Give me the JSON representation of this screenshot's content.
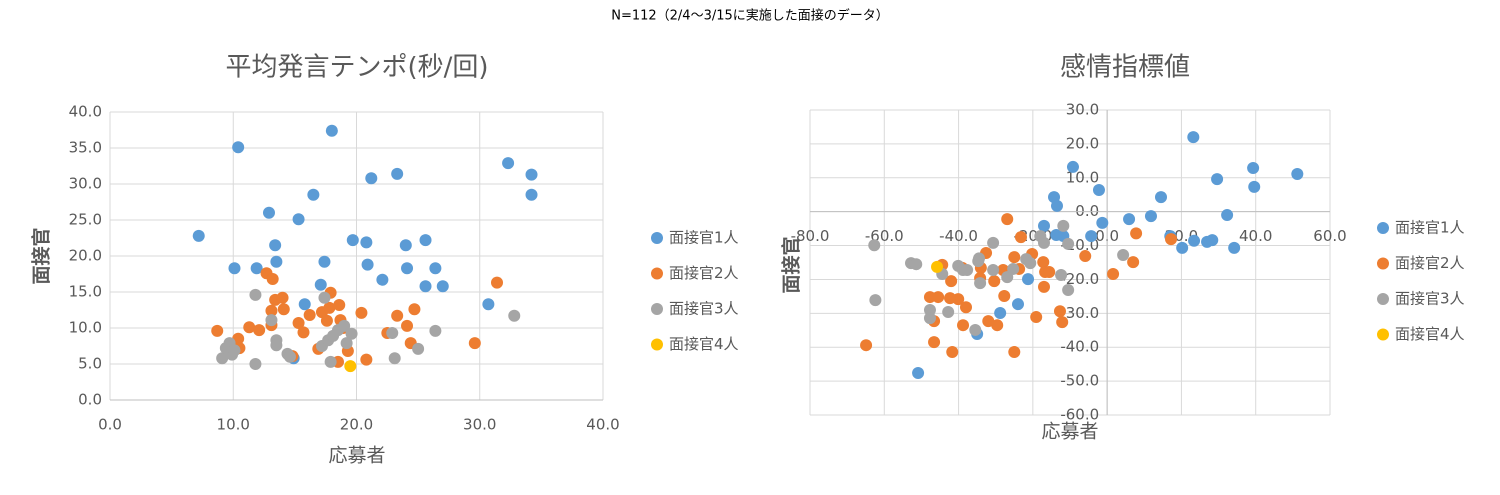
{
  "title": "N=112（2/4～3/15に実施した面接のデータ）",
  "chart_data": [
    {
      "type": "scatter",
      "title": "平均発言テンポ(秒/回)",
      "x_label": "応募者",
      "y_label": "面接官",
      "grid": true,
      "legend": "right",
      "axis_position": "edge",
      "xlim": [
        0,
        40
      ],
      "ylim": [
        0,
        40
      ],
      "xticks": [
        {
          "value": 0,
          "label": "0.0"
        },
        {
          "value": 10,
          "label": "10.0"
        },
        {
          "value": 20,
          "label": "20.0"
        },
        {
          "value": 30,
          "label": "30.0"
        },
        {
          "value": 40,
          "label": "40.0"
        }
      ],
      "yticks": [
        {
          "value": 0,
          "label": "0.0"
        },
        {
          "value": 5,
          "label": "5.0"
        },
        {
          "value": 10,
          "label": "10.0"
        },
        {
          "value": 15,
          "label": "15.0"
        },
        {
          "value": 20,
          "label": "20.0"
        },
        {
          "value": 25,
          "label": "25.0"
        },
        {
          "value": 30,
          "label": "30.0"
        },
        {
          "value": 35,
          "label": "35.0"
        },
        {
          "value": 40,
          "label": "40.0"
        }
      ],
      "series": [
        {
          "name": "面接官1人",
          "color": "#5b9bd5",
          "x": [
            7.2,
            10.4,
            10.1,
            11.9,
            12.9,
            13.4,
            13.5,
            15.3,
            16.5,
            15.8,
            18.0,
            17.4,
            17.1,
            19.7,
            20.8,
            21.2,
            20.9,
            22.1,
            23.3,
            24.0,
            24.1,
            25.6,
            25.6,
            26.4,
            27.0,
            30.7,
            32.3,
            34.2,
            34.2,
            14.9
          ],
          "values": [
            22.8,
            35.1,
            18.3,
            18.3,
            26.0,
            21.5,
            19.2,
            25.1,
            28.5,
            13.3,
            37.4,
            19.2,
            16.0,
            22.2,
            21.9,
            30.8,
            18.8,
            16.7,
            31.4,
            21.5,
            18.3,
            22.2,
            15.8,
            18.3,
            15.8,
            13.3,
            32.9,
            31.3,
            28.5,
            5.8
          ]
        },
        {
          "name": "面接官2人",
          "color": "#ed7d31",
          "x": [
            8.7,
            10.4,
            10.5,
            11.3,
            12.1,
            12.7,
            13.2,
            13.4,
            13.1,
            13.1,
            14.0,
            14.1,
            14.8,
            15.3,
            15.7,
            16.2,
            16.9,
            17.2,
            17.6,
            17.8,
            17.9,
            18.6,
            18.7,
            18.9,
            19.3,
            18.5,
            20.4,
            20.8,
            22.5,
            23.3,
            24.1,
            24.4,
            24.7,
            29.6,
            31.4
          ],
          "values": [
            9.6,
            8.5,
            7.2,
            10.1,
            9.7,
            17.6,
            16.8,
            13.9,
            12.4,
            10.4,
            14.2,
            12.6,
            6.1,
            10.7,
            9.4,
            11.8,
            7.1,
            12.2,
            11.0,
            12.8,
            14.9,
            13.2,
            11.1,
            10.0,
            6.8,
            5.3,
            12.1,
            5.6,
            9.3,
            11.7,
            10.3,
            7.9,
            12.6,
            7.9,
            16.3
          ]
        },
        {
          "name": "面接官3人",
          "color": "#a5a5a5",
          "x": [
            9.1,
            9.4,
            9.7,
            9.9,
            10.1,
            11.8,
            11.8,
            13.1,
            13.5,
            13.5,
            14.4,
            14.6,
            17.4,
            17.2,
            17.7,
            17.9,
            18.1,
            18.5,
            19.0,
            19.6,
            22.9,
            23.1,
            25.0,
            26.4,
            32.8,
            19.2
          ],
          "values": [
            5.8,
            7.2,
            7.9,
            6.3,
            6.9,
            14.6,
            5.0,
            11.1,
            8.3,
            7.6,
            6.4,
            6.0,
            14.2,
            7.5,
            8.3,
            5.3,
            8.9,
            9.7,
            10.3,
            9.2,
            9.3,
            5.8,
            7.1,
            9.6,
            11.7,
            7.9
          ]
        },
        {
          "name": "面接官4人",
          "color": "#ffc000",
          "x": [
            19.5
          ],
          "values": [
            4.7
          ]
        }
      ]
    },
    {
      "type": "scatter",
      "title": "感情指標値",
      "x_label": "応募者",
      "y_label": "面接官",
      "grid": true,
      "legend": "right",
      "axis_position": "zero",
      "xlim": [
        -80,
        60
      ],
      "ylim": [
        -60,
        30
      ],
      "xticks": [
        {
          "value": -80,
          "label": "-80.0"
        },
        {
          "value": -60,
          "label": "-60.0"
        },
        {
          "value": -40,
          "label": "-40.0"
        },
        {
          "value": -20,
          "label": "-20.0"
        },
        {
          "value": 0,
          "label": "0.0"
        },
        {
          "value": 20,
          "label": "20.0"
        },
        {
          "value": 40,
          "label": "40.0"
        },
        {
          "value": 60,
          "label": "60.0"
        }
      ],
      "yticks": [
        {
          "value": -60,
          "label": "-60.0"
        },
        {
          "value": -50,
          "label": "-50.0"
        },
        {
          "value": -40,
          "label": "-40.0"
        },
        {
          "value": -30,
          "label": "-30.0"
        },
        {
          "value": -20,
          "label": "-20.0"
        },
        {
          "value": -10,
          "label": "-10.0"
        },
        {
          "value": 0,
          "label": "0.0"
        },
        {
          "value": 10,
          "label": "10.0"
        },
        {
          "value": 20,
          "label": "20.0"
        },
        {
          "value": 30,
          "label": "30.0"
        }
      ],
      "series": [
        {
          "name": "面接官1人",
          "color": "#5b9bd5",
          "x": [
            23.2,
            39.3,
            39.6,
            51.2,
            29.6,
            32.3,
            14.5,
            11.8,
            5.9,
            -1.3,
            -2.2,
            -9.2,
            -14.3,
            -13.5,
            -13.7,
            -11.8,
            -4.3,
            17.0,
            20.2,
            23.4,
            26.9,
            28.3,
            34.2,
            -17.0,
            -21.3,
            -24.0,
            -28.8,
            -35.0,
            -50.9
          ],
          "values": [
            22.0,
            12.9,
            7.3,
            11.1,
            9.6,
            -1.0,
            4.3,
            -1.3,
            -2.2,
            -3.3,
            6.4,
            13.2,
            4.3,
            1.7,
            -6.9,
            -7.2,
            -7.2,
            -7.2,
            -10.7,
            -8.6,
            -8.9,
            -8.4,
            -10.7,
            -4.2,
            -19.9,
            -27.3,
            -29.9,
            -36.1,
            -47.6
          ]
        },
        {
          "name": "面接官2人",
          "color": "#ed7d31",
          "x": [
            -64.9,
            -26.9,
            -23.2,
            -20.2,
            -17.2,
            -16.7,
            -15.6,
            -17.0,
            -23.7,
            -25.0,
            -28.0,
            -27.7,
            -30.4,
            -5.9,
            1.6,
            7.0,
            7.8,
            17.2,
            -12.7,
            -12.1,
            -19.1,
            -25.0,
            -29.6,
            -32.0,
            -38.0,
            -38.8,
            -40.1,
            -41.7,
            -42.3,
            -45.5,
            -47.7,
            -46.6,
            -46.6,
            -42.0,
            -39.0,
            -34.2,
            -34.0,
            -44.4,
            -32.6
          ],
          "values": [
            -39.4,
            -2.2,
            -7.5,
            -12.5,
            -14.9,
            -17.8,
            -17.8,
            -22.2,
            -16.9,
            -13.4,
            -17.2,
            -24.9,
            -20.5,
            -13.1,
            -18.4,
            -14.9,
            -6.4,
            -8.1,
            -29.4,
            -32.6,
            -31.1,
            -41.4,
            -33.5,
            -32.3,
            -28.2,
            -33.5,
            -25.8,
            -41.4,
            -25.5,
            -25.2,
            -25.2,
            -38.5,
            -32.3,
            -20.5,
            -16.6,
            -19.6,
            -16.6,
            -15.7,
            -12.2
          ]
        },
        {
          "name": "面接官3人",
          "color": "#a5a5a5",
          "x": [
            -62.7,
            -52.8,
            -51.4,
            -62.4,
            -47.7,
            -47.7,
            -44.4,
            -42.8,
            -40.1,
            -38.8,
            -37.7,
            -35.5,
            -34.7,
            -34.5,
            -34.2,
            -30.7,
            -30.7,
            -26.9,
            -25.3,
            -21.8,
            -20.7,
            -18.0,
            -17.0,
            -11.8,
            -10.5,
            -12.4,
            -10.5,
            4.3
          ],
          "values": [
            -9.9,
            -15.2,
            -15.5,
            -26.1,
            -29.0,
            -31.4,
            -18.4,
            -29.6,
            -16.0,
            -17.2,
            -17.2,
            -34.9,
            -14.6,
            -13.8,
            -21.1,
            -9.2,
            -17.2,
            -19.3,
            -16.9,
            -14.0,
            -15.2,
            -7.2,
            -9.2,
            -4.2,
            -9.5,
            -18.7,
            -23.1,
            -12.8
          ]
        },
        {
          "name": "面接官4人",
          "color": "#ffc000",
          "x": [
            -45.8
          ],
          "values": [
            -16.3
          ]
        }
      ]
    }
  ]
}
